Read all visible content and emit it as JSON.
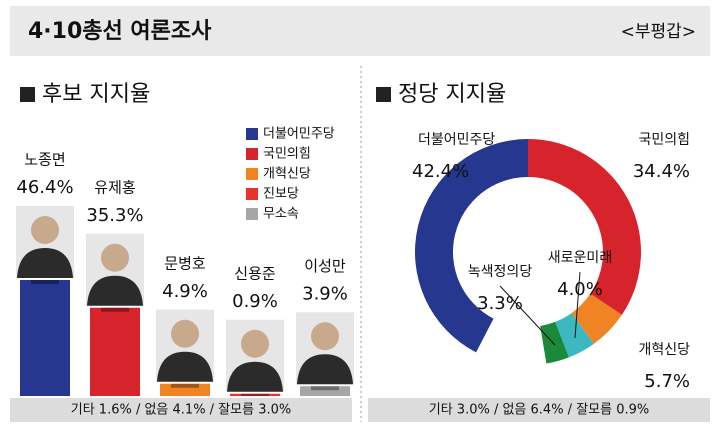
{
  "header": {
    "title": "4·10총선 여론조사",
    "region": "<부평갑>"
  },
  "chart_data": [
    {
      "type": "bar",
      "title": "후보 지지율",
      "categories": [
        "노종면",
        "유제홍",
        "문병호",
        "신용준",
        "이성만"
      ],
      "values": [
        46.4,
        35.3,
        4.9,
        0.9,
        3.9
      ],
      "value_labels": [
        "46.4%",
        "35.3%",
        "4.9%",
        "0.9%",
        "3.9%"
      ],
      "colors": [
        "#26378f",
        "#d7232b",
        "#f08424",
        "#e9322d",
        "#a6a6a6"
      ],
      "legend": [
        {
          "name": "더불어민주당",
          "color": "#26378f"
        },
        {
          "name": "국민의힘",
          "color": "#d7232b"
        },
        {
          "name": "개혁신당",
          "color": "#f08424"
        },
        {
          "name": "진보당",
          "color": "#e9322d"
        },
        {
          "name": "무소속",
          "color": "#a6a6a6"
        }
      ],
      "note": "기타 1.6% / 없음 4.1% / 잘모름 3.0%"
    },
    {
      "type": "donut",
      "title": "정당 지지율",
      "categories": [
        "더불어민주당",
        "국민의힘",
        "개혁신당",
        "새로운미래",
        "녹색정의당"
      ],
      "values": [
        42.4,
        34.4,
        5.7,
        4.0,
        3.3
      ],
      "value_labels": [
        "42.4%",
        "34.4%",
        "5.7%",
        "4.0%",
        "3.3%"
      ],
      "colors": [
        "#26378f",
        "#d7232b",
        "#f08424",
        "#3bb8c0",
        "#1a8a3a"
      ],
      "note": "기타 3.0% / 없음 6.4% / 잘모름 0.9%"
    }
  ]
}
